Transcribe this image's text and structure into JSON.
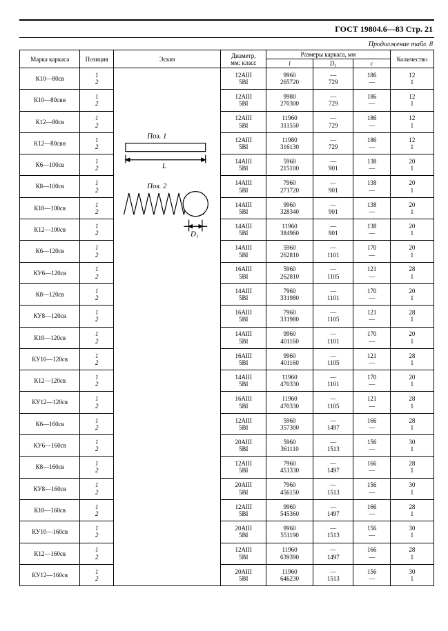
{
  "header": "ГОСТ 19804.6—83 Стр. 21",
  "continuation": "Продолжение табл. 8",
  "columns": {
    "marka": "Марка каркаса",
    "poz": "Позиция",
    "eskiz": "Эскиз",
    "diam": "Диаметр,\nмм; класс",
    "razm": "Размеры каркаса, мм",
    "l": "l",
    "d1": "D₁",
    "c": "c",
    "qty": "Количество"
  },
  "sketch": {
    "p1": "Поз. 1",
    "p2": "Поз. 2",
    "l_lbl": "L",
    "d_lbl": "D₁"
  },
  "rows": [
    {
      "marka": "К10—80св",
      "diam1": "12AIII",
      "diam2": "5BI",
      "l1": "9960",
      "l2": "265720",
      "d1": "—",
      "d2": "729",
      "c1": "186",
      "c2": "—",
      "q1": "12",
      "q2": "1"
    },
    {
      "marka": "К10—80свн",
      "diam1": "12AIII",
      "diam2": "5BI",
      "l1": "9980",
      "l2": "270300",
      "d1": "—",
      "d2": "729",
      "c1": "186",
      "c2": "—",
      "q1": "12",
      "q2": "1"
    },
    {
      "marka": "К12—80св",
      "diam1": "12AIII",
      "diam2": "5BI",
      "l1": "11960",
      "l2": "311550",
      "d1": "—",
      "d2": "729",
      "c1": "186",
      "c2": "—",
      "q1": "12",
      "q2": "1"
    },
    {
      "marka": "К12—80свн",
      "diam1": "12AIII",
      "diam2": "5BI",
      "l1": "11980",
      "l2": "316130",
      "d1": "—",
      "d2": "729",
      "c1": "186",
      "c2": "—",
      "q1": "12",
      "q2": "1"
    },
    {
      "marka": "К6—100св",
      "diam1": "14AIII",
      "diam2": "5BI",
      "l1": "5960",
      "l2": "215100",
      "d1": "—",
      "d2": "901",
      "c1": "138",
      "c2": "—",
      "q1": "20",
      "q2": "1"
    },
    {
      "marka": "К8—100св",
      "diam1": "14AIII",
      "diam2": "5BI",
      "l1": "7960",
      "l2": "271720",
      "d1": "—",
      "d2": "901",
      "c1": "138",
      "c2": "—",
      "q1": "20",
      "q2": "1"
    },
    {
      "marka": "К10—100св",
      "diam1": "14AIII",
      "diam2": "5BI",
      "l1": "9960",
      "l2": "328340",
      "d1": "—",
      "d2": "901",
      "c1": "138",
      "c2": "—",
      "q1": "20",
      "q2": "1"
    },
    {
      "marka": "К12—100св",
      "diam1": "14AIII",
      "diam2": "5BI",
      "l1": "11960",
      "l2": "384960",
      "d1": "—",
      "d2": "901",
      "c1": "138",
      "c2": "—",
      "q1": "20",
      "q2": "1"
    },
    {
      "marka": "К6—120св",
      "diam1": "14AIII",
      "diam2": "5BI",
      "l1": "5960",
      "l2": "262810",
      "d1": "—",
      "d2": "1101",
      "c1": "170",
      "c2": "—",
      "q1": "20",
      "q2": "1"
    },
    {
      "marka": "КУ6—120св",
      "diam1": "16AIII",
      "diam2": "5BI",
      "l1": "5960",
      "l2": "262810",
      "d1": "—",
      "d2": "1105",
      "c1": "121",
      "c2": "—",
      "q1": "28",
      "q2": "1"
    },
    {
      "marka": "К8—120св",
      "diam1": "14AIII",
      "diam2": "5BI",
      "l1": "7960",
      "l2": "331980",
      "d1": "—",
      "d2": "1101",
      "c1": "170",
      "c2": "—",
      "q1": "20",
      "q2": "1"
    },
    {
      "marka": "КУ8—120св",
      "diam1": "16AIII",
      "diam2": "5BI",
      "l1": "7960",
      "l2": "331980",
      "d1": "—",
      "d2": "1105",
      "c1": "121",
      "c2": "—",
      "q1": "28",
      "q2": "1"
    },
    {
      "marka": "К10—120св",
      "diam1": "14AIII",
      "diam2": "5BI",
      "l1": "9960",
      "l2": "401160",
      "d1": "—",
      "d2": "1101",
      "c1": "170",
      "c2": "—",
      "q1": "20",
      "q2": "1"
    },
    {
      "marka": "КУ10—120св",
      "diam1": "16AIII",
      "diam2": "5BI",
      "l1": "9960",
      "l2": "401160",
      "d1": "—",
      "d2": "1105",
      "c1": "121",
      "c2": "—",
      "q1": "28",
      "q2": "1"
    },
    {
      "marka": "К12—120св",
      "diam1": "14AIII",
      "diam2": "5BI",
      "l1": "11960",
      "l2": "470330",
      "d1": "—",
      "d2": "1101",
      "c1": "170",
      "c2": "—",
      "q1": "20",
      "q2": "1"
    },
    {
      "marka": "КУ12—120св",
      "diam1": "16AIII",
      "diam2": "5BI",
      "l1": "11960",
      "l2": "470330",
      "d1": "—",
      "d2": "1105",
      "c1": "121",
      "c2": "—",
      "q1": "28",
      "q2": "1"
    },
    {
      "marka": "К6—160св",
      "diam1": "12AIII",
      "diam2": "5BI",
      "l1": "5960",
      "l2": "357300",
      "d1": "—",
      "d2": "1497",
      "c1": "166",
      "c2": "—",
      "q1": "28",
      "q2": "1"
    },
    {
      "marka": "КУ6—160св",
      "diam1": "20AIII",
      "diam2": "5BI",
      "l1": "5960",
      "l2": "361110",
      "d1": "—",
      "d2": "1513",
      "c1": "156",
      "c2": "—",
      "q1": "30",
      "q2": "1"
    },
    {
      "marka": "К8—160св",
      "diam1": "12AIII",
      "diam2": "5BI",
      "l1": "7960",
      "l2": "451330",
      "d1": "—",
      "d2": "1497",
      "c1": "166",
      "c2": "—",
      "q1": "28",
      "q2": "1"
    },
    {
      "marka": "КУ8—160св",
      "diam1": "20AIII",
      "diam2": "5BI",
      "l1": "7960",
      "l2": "456150",
      "d1": "—",
      "d2": "1513",
      "c1": "156",
      "c2": "—",
      "q1": "30",
      "q2": "1"
    },
    {
      "marka": "К10—160св",
      "diam1": "12AIII",
      "diam2": "5BI",
      "l1": "9960",
      "l2": "545360",
      "d1": "—",
      "d2": "1497",
      "c1": "166",
      "c2": "—",
      "q1": "28",
      "q2": "1"
    },
    {
      "marka": "КУ10—160св",
      "diam1": "20AIII",
      "diam2": "5BI",
      "l1": "9960",
      "l2": "551190",
      "d1": "—",
      "d2": "1513",
      "c1": "156",
      "c2": "—",
      "q1": "30",
      "q2": "1"
    },
    {
      "marka": "К12—160св",
      "diam1": "12AIII",
      "diam2": "5BI",
      "l1": "11960",
      "l2": "639390",
      "d1": "—",
      "d2": "1497",
      "c1": "166",
      "c2": "—",
      "q1": "28",
      "q2": "1"
    },
    {
      "marka": "КУ12—160св",
      "diam1": "20AIII",
      "diam2": "5BI",
      "l1": "11960",
      "l2": "646230",
      "d1": "—",
      "d2": "1513",
      "c1": "156",
      "c2": "—",
      "q1": "30",
      "q2": "1"
    }
  ]
}
